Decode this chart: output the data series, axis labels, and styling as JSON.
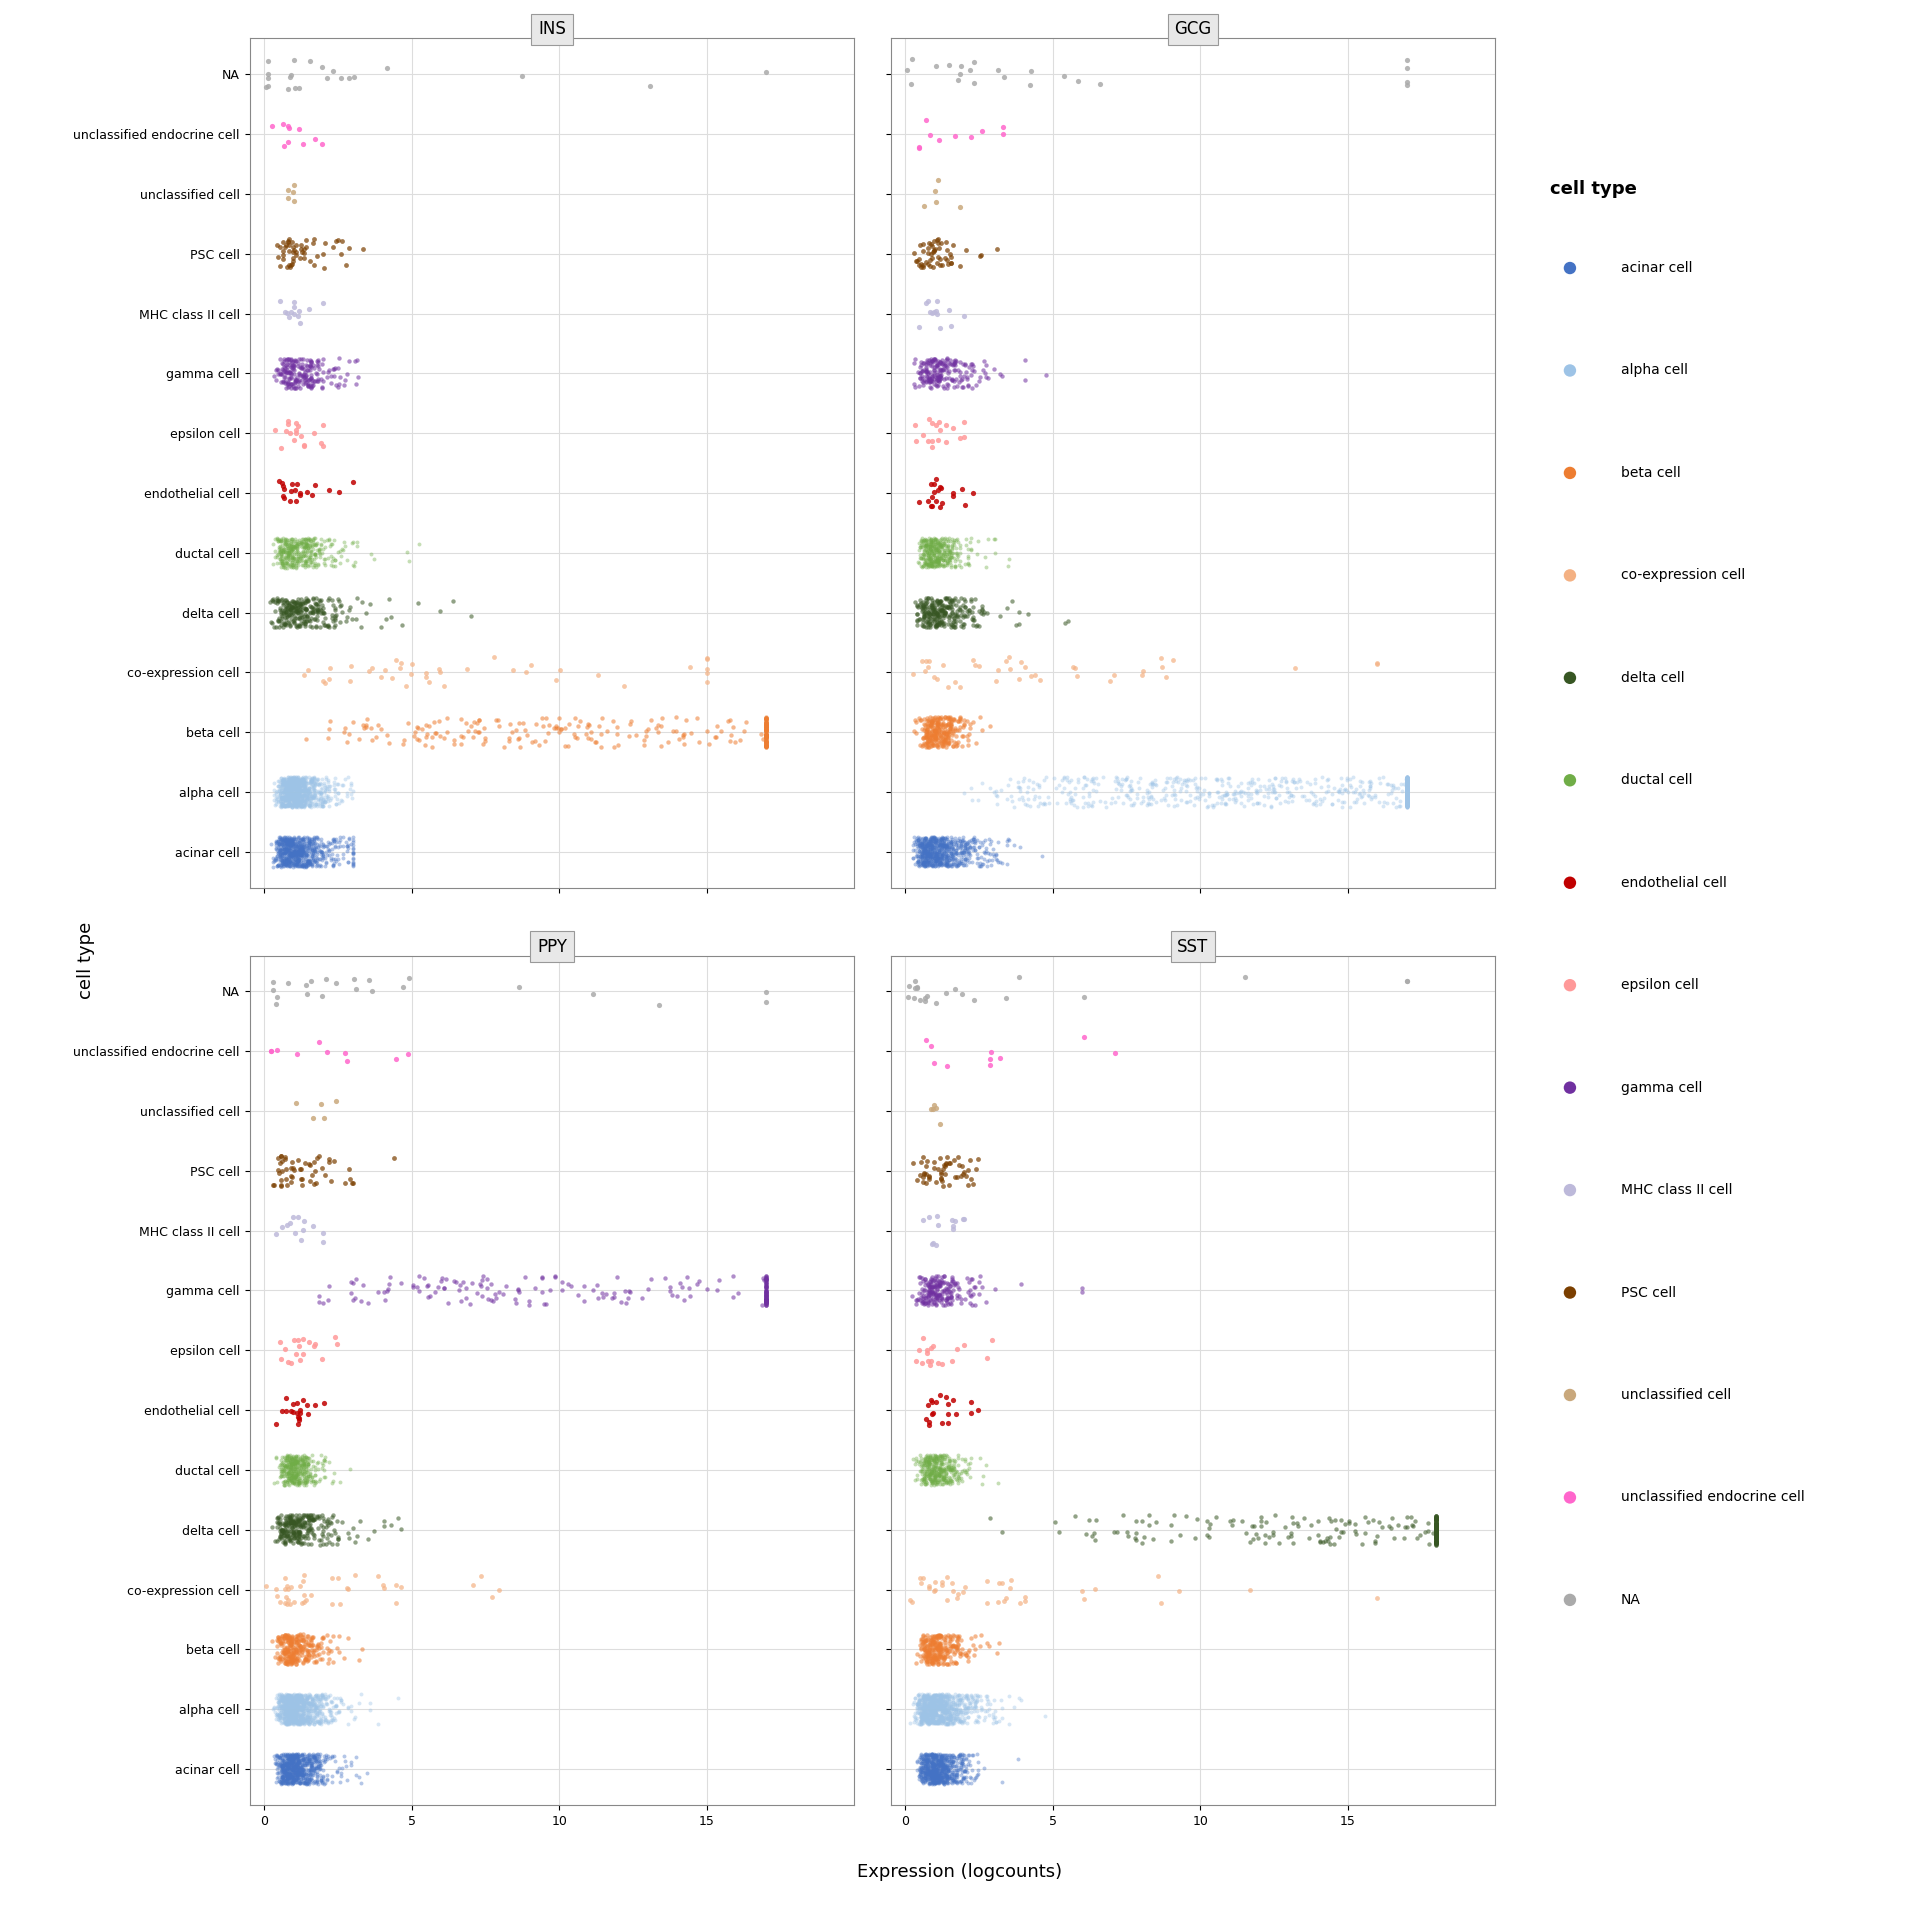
{
  "genes": [
    "INS",
    "GCG",
    "PPY",
    "SST"
  ],
  "cell_types": [
    "acinar cell",
    "alpha cell",
    "beta cell",
    "co-expression cell",
    "delta cell",
    "ductal cell",
    "endothelial cell",
    "epsilon cell",
    "gamma cell",
    "MHC class II cell",
    "PSC cell",
    "unclassified cell",
    "unclassified endocrine cell",
    "NA"
  ],
  "cell_type_colors": {
    "acinar cell": "#4472C4",
    "alpha cell": "#9DC3E6",
    "beta cell": "#ED7D31",
    "co-expression cell": "#F4B183",
    "delta cell": "#375623",
    "ductal cell": "#70AD47",
    "endothelial cell": "#C00000",
    "epsilon cell": "#FF9999",
    "gamma cell": "#7030A0",
    "MHC class II cell": "#BDB9DA",
    "PSC cell": "#7B3F00",
    "unclassified cell": "#C9A87C",
    "unclassified endocrine cell": "#FF66CC",
    "NA": "#AAAAAA"
  },
  "ylabel_rotation": 90,
  "xlabel": "Expression (logcounts)",
  "ylabel": "cell type",
  "xlim": [
    -1,
    20
  ],
  "background_color": "#FFFFFF",
  "panel_bg": "#FFFFFF",
  "grid_color": "#DDDDDD",
  "title_bg": "#E8E8E8",
  "figsize": [
    19.2,
    19.2
  ],
  "dpi": 100
}
